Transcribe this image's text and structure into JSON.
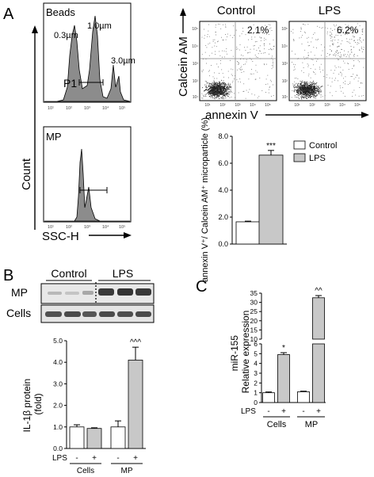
{
  "panel_labels": [
    "A",
    "B",
    "C"
  ],
  "panel_a": {
    "histogram": {
      "top_label": "Beads",
      "bottom_label": "MP",
      "bead_sizes": [
        "0.3µm",
        "1.0µm",
        "3.0µm"
      ],
      "gate_label": "P1",
      "ylabel": "Count",
      "xlabel": "SSC-H",
      "tick_labels": [
        "10¹",
        "10²",
        "10³",
        "10⁴",
        "10⁵"
      ]
    },
    "flow": {
      "conditions": [
        {
          "name": "Control",
          "percent": "2.1%"
        },
        {
          "name": "LPS",
          "percent": "6.2%"
        }
      ],
      "ylabel": "Calcein AM",
      "xlabel": "annexin V",
      "tick_labels": [
        "10¹",
        "10²",
        "10³",
        "10⁴",
        "10⁵"
      ]
    }
  },
  "panel_b_blot": {
    "groups": [
      "Control",
      "LPS"
    ],
    "rows": [
      "MP",
      "Cells"
    ]
  },
  "chart_data": [
    {
      "id": "panel-a-bar",
      "type": "bar",
      "categories": [
        "Control",
        "LPS"
      ],
      "values": [
        1.65,
        6.6
      ],
      "errors": [
        0.05,
        0.35
      ],
      "ylabel": "annexin V⁺/ Calcein AM⁺ microparticle (%)",
      "ylim": [
        0,
        8
      ],
      "yticks": [
        "0.0",
        "2.0",
        "4.0",
        "6.0",
        "8.0"
      ],
      "annotations": [
        "",
        "***"
      ],
      "legend": [
        "Control",
        "LPS"
      ],
      "legend_position": "top-right",
      "colors": [
        "#ffffff",
        "#c8c8c8"
      ]
    },
    {
      "id": "panel-b-bar",
      "type": "bar",
      "categories": [
        "Cells -",
        "Cells +",
        "MP -",
        "MP +"
      ],
      "values": [
        1.0,
        0.93,
        1.0,
        4.1
      ],
      "errors": [
        0.1,
        0.03,
        0.28,
        0.6
      ],
      "ylabel": "IL-1β protein (fold)",
      "ylim": [
        0,
        5
      ],
      "yticks": [
        "0.0",
        "1.0",
        "2.0",
        "3.0",
        "4.0",
        "5.0"
      ],
      "annotations": [
        "",
        "",
        "",
        "^^^"
      ],
      "lps_row_label": "LPS",
      "lps_signs": [
        "-",
        "+",
        "-",
        "+"
      ],
      "group_labels": [
        "Cells",
        "MP"
      ],
      "colors": [
        "#ffffff",
        "#c8c8c8",
        "#ffffff",
        "#c8c8c8"
      ]
    },
    {
      "id": "panel-c-bar",
      "type": "bar",
      "categories": [
        "Cells -",
        "Cells +",
        "MP -",
        "MP +"
      ],
      "values": [
        1.0,
        4.9,
        1.1,
        32.5
      ],
      "errors": [
        0.08,
        0.2,
        0.06,
        1.2
      ],
      "ylabel": "miR-155 Relative expression",
      "ylim": [
        0,
        35
      ],
      "axis_break": [
        6,
        10
      ],
      "yticks_lower": [
        "0",
        "1",
        "2",
        "3",
        "4",
        "5",
        "6"
      ],
      "yticks_upper": [
        "10",
        "15",
        "20",
        "25",
        "30",
        "35"
      ],
      "annotations": [
        "",
        "*",
        "",
        "^^"
      ],
      "lps_row_label": "LPS",
      "lps_signs": [
        "-",
        "+",
        "-",
        "+"
      ],
      "group_labels": [
        "Cells",
        "MP"
      ],
      "colors": [
        "#ffffff",
        "#c8c8c8",
        "#ffffff",
        "#c8c8c8"
      ]
    }
  ]
}
